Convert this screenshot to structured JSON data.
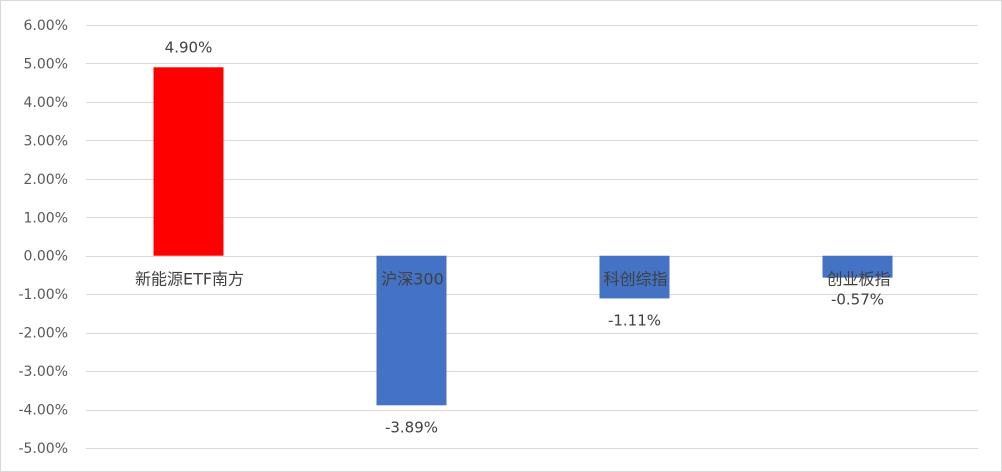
{
  "chart_data": {
    "type": "bar",
    "categories": [
      "新能源ETF南方",
      "沪深300",
      "科创综指",
      "创业板指"
    ],
    "values": [
      4.9,
      -3.89,
      -1.11,
      -0.57
    ],
    "data_labels": [
      "4.90%",
      "-3.89%",
      "-1.11%",
      "-0.57%"
    ],
    "bar_colors": [
      "#ff0000",
      "#4472c4",
      "#4472c4",
      "#4472c4"
    ],
    "ylim": [
      -5,
      6
    ],
    "yticks": [
      6,
      5,
      4,
      3,
      2,
      1,
      0,
      -1,
      -2,
      -3,
      -4,
      -5
    ],
    "ytick_labels": [
      "6.00%",
      "5.00%",
      "4.00%",
      "3.00%",
      "2.00%",
      "1.00%",
      "0.00%",
      "-1.00%",
      "-2.00%",
      "-3.00%",
      "-4.00%",
      "-5.00%"
    ],
    "grid": true,
    "legend": "none",
    "grid_color": "#d9d9d9"
  }
}
